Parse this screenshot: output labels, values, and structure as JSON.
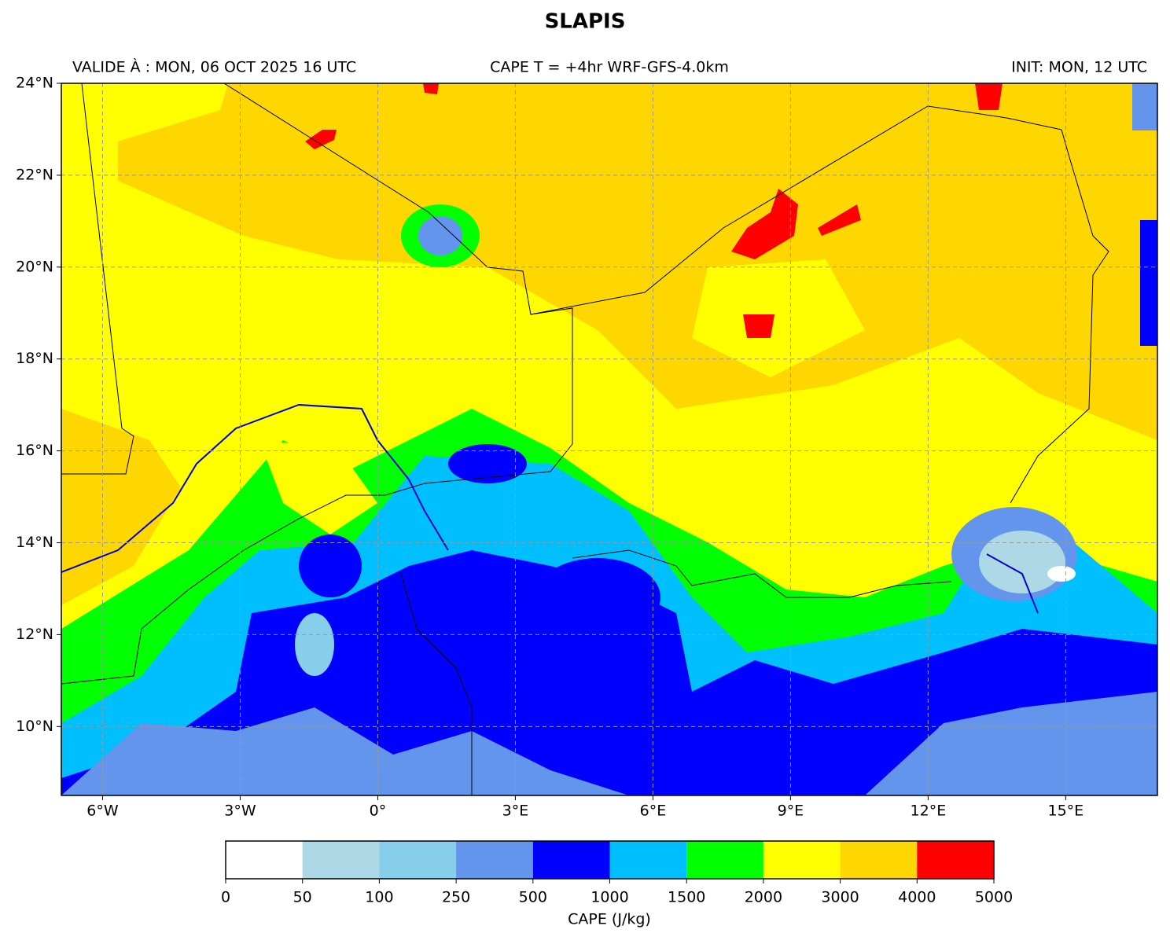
{
  "title": "SLAPIS",
  "header": {
    "left": "VALIDE À : MON, 06 OCT 2025 16 UTC",
    "center": "CAPE T = +4hr WRF-GFS-4.0km",
    "right": "INIT: MON, 12 UTC"
  },
  "map": {
    "xlim": [
      -6.9,
      17
    ],
    "ylim": [
      8.5,
      24
    ],
    "grid": true,
    "xticks": [
      {
        "value": -6,
        "label": "6°W"
      },
      {
        "value": -3,
        "label": "3°W"
      },
      {
        "value": 0,
        "label": "0°"
      },
      {
        "value": 3,
        "label": "3°E"
      },
      {
        "value": 6,
        "label": "6°E"
      },
      {
        "value": 9,
        "label": "9°E"
      },
      {
        "value": 12,
        "label": "12°E"
      },
      {
        "value": 15,
        "label": "15°E"
      }
    ],
    "yticks": [
      {
        "value": 10,
        "label": "10°N"
      },
      {
        "value": 12,
        "label": "12°N"
      },
      {
        "value": 14,
        "label": "14°N"
      },
      {
        "value": 16,
        "label": "16°N"
      },
      {
        "value": 18,
        "label": "18°N"
      },
      {
        "value": 20,
        "label": "20°N"
      },
      {
        "value": 22,
        "label": "22°N"
      },
      {
        "value": 24,
        "label": "24°N"
      }
    ]
  },
  "colorbar": {
    "label": "CAPE (J/kg)",
    "boundaries": [
      0,
      50,
      100,
      250,
      500,
      1000,
      1500,
      2000,
      3000,
      4000,
      5000
    ],
    "colors": [
      "#ffffff",
      "#add8e6",
      "#87ceeb",
      "#6495ed",
      "#0000ff",
      "#00bfff",
      "#00ff00",
      "#ffff00",
      "#ffd700",
      "#ff0000"
    ]
  }
}
